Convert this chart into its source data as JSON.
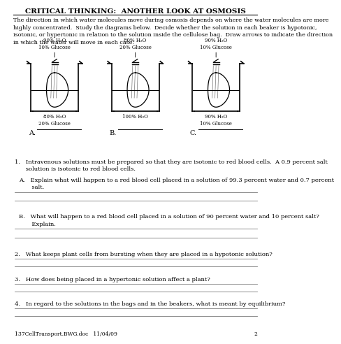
{
  "title": "CRITICAL THINKING:  ANOTHER LOOK AT OSMOSIS",
  "intro_text": "The direction in which water molecules move during osmosis depends on where the water molecules are more\nhighly concentrated.  Study the diagrams below.  Decide whether the solution in each beaker is hypotonic,\nisotonic, or hypertonic in relation to the solution inside the cellulose bag.  Draw arrows to indicate the direction\nin which the water will move in each case.",
  "beaker_A_top": "90% H₂O\n10% Glucose",
  "beaker_A_bottom": "80% H₂O\n20% Glucose",
  "beaker_B_top": "80% H₂O\n20% Glucose",
  "beaker_B_bottom": "100% H₂O",
  "beaker_C_top": "90% H₂O\n10% Glucose",
  "beaker_C_bottom": "90% H₂O\n10% Glucose",
  "label_A": "A.",
  "label_B": "B.",
  "label_C": "C.",
  "q1_text": "1.   Intravenous solutions must be prepared so that they are isotonic to red blood cells.  A 0.9 percent salt\n      solution is isotonic to red blood cells.",
  "q1a_text": "A.   Explain what will happen to a red blood cell placed in a solution of 99.3 percent water and 0.7 percent\n       salt.",
  "q1b_text": "B.   What will happen to a red blood cell placed in a solution of 90 percent water and 10 percent salt?\n       Explain.",
  "q2_text": "2.   What keeps plant cells from bursting when they are placed in a hypotonic solution?",
  "q3_text": "3.   How does being placed in a hypertonic solution affect a plant?",
  "q4_text": "4.   In regard to the solutions in the bags and in the beakers, what is meant by equilibrium?",
  "footer_text": "137CellTransport.BWG.doc   11/04/09",
  "footer_page": "2",
  "bg_color": "#ffffff",
  "text_color": "#000000",
  "line_color": "#555555"
}
